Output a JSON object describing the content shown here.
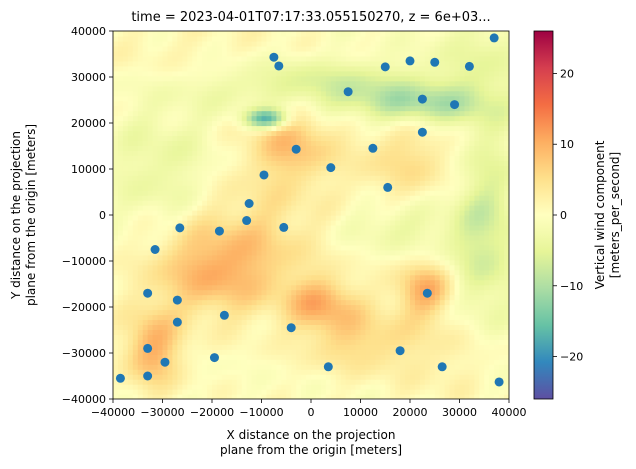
{
  "chart_data": {
    "type": "heatmap",
    "title": "time = 2023-04-01T07:17:33.055150270, z = 6e+03...",
    "xlabel_line1": "X distance on the projection",
    "xlabel_line2": "plane from the origin [meters]",
    "ylabel_line1": "Y distance on the projection",
    "ylabel_line2": "plane from the origin [meters]",
    "xlim": [
      -40000,
      40000
    ],
    "ylim": [
      -40000,
      40000
    ],
    "xticks": [
      -40000,
      -30000,
      -20000,
      -10000,
      0,
      10000,
      20000,
      30000,
      40000
    ],
    "xtick_labels": [
      "−40000",
      "−30000",
      "−20000",
      "−10000",
      "0",
      "10000",
      "20000",
      "30000",
      "40000"
    ],
    "yticks": [
      -40000,
      -30000,
      -20000,
      -10000,
      0,
      10000,
      20000,
      30000,
      40000
    ],
    "ytick_labels": [
      "−40000",
      "−30000",
      "−20000",
      "−10000",
      "0",
      "10000",
      "20000",
      "30000",
      "40000"
    ],
    "colorbar": {
      "label_line1": "Vertical wind component",
      "label_line2": "[meters_per_second]",
      "vmin": -26,
      "vmax": 26,
      "ticks": [
        -20,
        -10,
        0,
        10,
        20
      ],
      "tick_labels": [
        "−20",
        "−10",
        "0",
        "10",
        "20"
      ],
      "colormap": "Spectral_r"
    },
    "field_features": [
      {
        "x": -25000,
        "y": 36000,
        "v": 1.5,
        "sx": 16000,
        "sy": 5000
      },
      {
        "x": 35000,
        "y": -3000,
        "v": -7,
        "sx": 5000,
        "sy": 18000
      },
      {
        "x": 3000,
        "y": 28000,
        "v": -7,
        "sx": 16000,
        "sy": 4000
      },
      {
        "x": 22000,
        "y": 24000,
        "v": -9,
        "sx": 9000,
        "sy": 3000
      },
      {
        "x": -9000,
        "y": 21000,
        "v": -18,
        "sx": 3000,
        "sy": 1500
      },
      {
        "x": -4000,
        "y": 16000,
        "v": 8,
        "sx": 6000,
        "sy": 6000
      },
      {
        "x": -20000,
        "y": -12000,
        "v": 9,
        "sx": 9000,
        "sy": 7000
      },
      {
        "x": 2000,
        "y": -19000,
        "v": 9,
        "sx": 5000,
        "sy": 4000
      },
      {
        "x": 23000,
        "y": -16000,
        "v": 10,
        "sx": 4000,
        "sy": 4000
      },
      {
        "x": -32000,
        "y": -29000,
        "v": 10,
        "sx": 4000,
        "sy": 6000
      },
      {
        "x": 10000,
        "y": -27000,
        "v": 6,
        "sx": 8000,
        "sy": 5000
      },
      {
        "x": 20000,
        "y": 12000,
        "v": 5,
        "sx": 8000,
        "sy": 7000
      },
      {
        "x": -30000,
        "y": 10000,
        "v": -4,
        "sx": 8000,
        "sy": 10000
      },
      {
        "x": -10000,
        "y": -3000,
        "v": 4,
        "sx": 10000,
        "sy": 10000
      },
      {
        "x": 30000,
        "y": -30000,
        "v": 3,
        "sx": 8000,
        "sy": 8000
      },
      {
        "x": 35000,
        "y": 35000,
        "v": -3,
        "sx": 8000,
        "sy": 8000
      },
      {
        "x": 18000,
        "y": -2000,
        "v": -4,
        "sx": 8000,
        "sy": 4000
      }
    ],
    "scatter": {
      "color": "#1f77b4",
      "points": [
        [
          -38500,
          -35500
        ],
        [
          -33000,
          -35000
        ],
        [
          -29500,
          -32000
        ],
        [
          -33000,
          -29000
        ],
        [
          -27000,
          -23300
        ],
        [
          -27000,
          -18500
        ],
        [
          -33000,
          -17000
        ],
        [
          -19500,
          -31000
        ],
        [
          -17500,
          -21800
        ],
        [
          -31500,
          -7500
        ],
        [
          -26500,
          -2800
        ],
        [
          -18500,
          -3500
        ],
        [
          -13000,
          -1200
        ],
        [
          -12500,
          2500
        ],
        [
          -5500,
          -2700
        ],
        [
          -4000,
          -24500
        ],
        [
          3500,
          -33000
        ],
        [
          18000,
          -29500
        ],
        [
          26500,
          -33000
        ],
        [
          38000,
          -36300
        ],
        [
          23500,
          -17000
        ],
        [
          -9500,
          8700
        ],
        [
          -3000,
          14300
        ],
        [
          4000,
          10300
        ],
        [
          15500,
          6000
        ],
        [
          12500,
          14500
        ],
        [
          22500,
          18000
        ],
        [
          29000,
          24000
        ],
        [
          22500,
          25200
        ],
        [
          7500,
          26800
        ],
        [
          -7500,
          34300
        ],
        [
          -6500,
          32400
        ],
        [
          15000,
          32200
        ],
        [
          20000,
          33500
        ],
        [
          25000,
          33200
        ],
        [
          32000,
          32300
        ],
        [
          37000,
          38500
        ]
      ]
    }
  }
}
